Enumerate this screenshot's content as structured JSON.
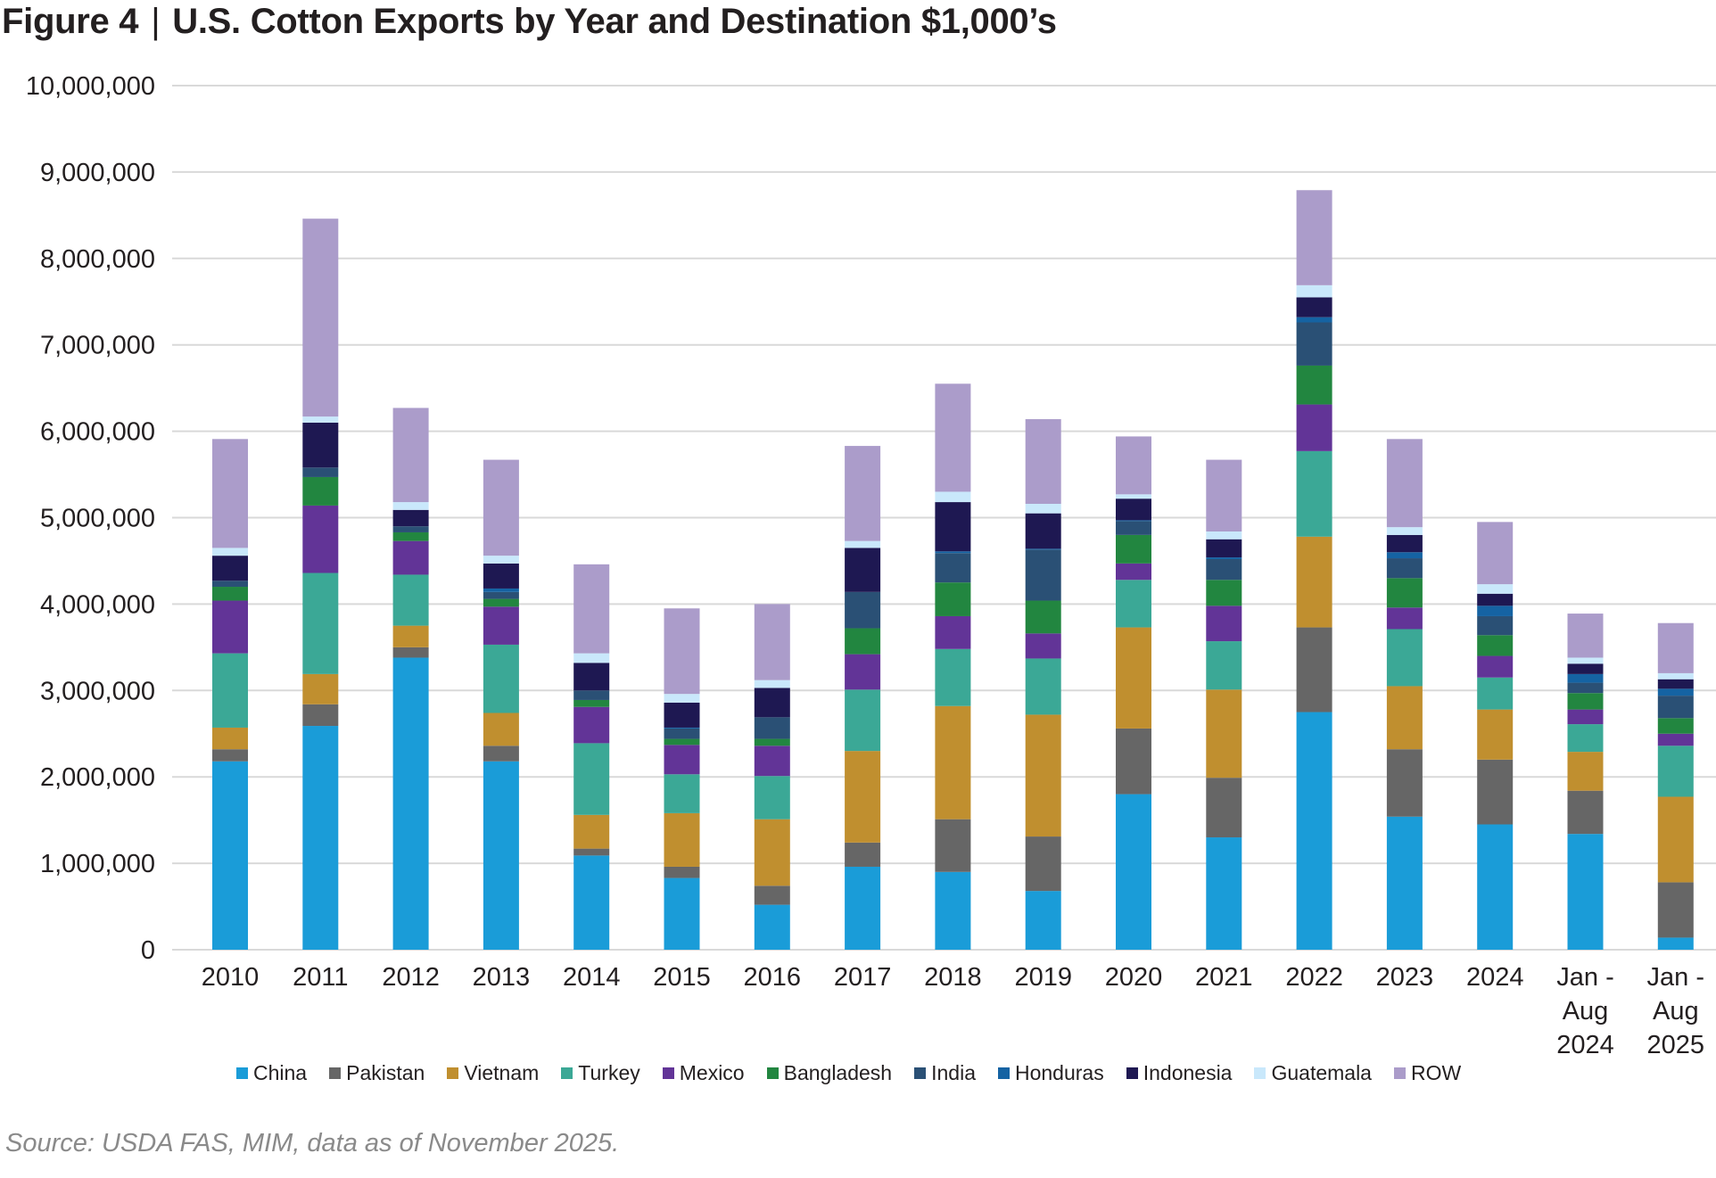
{
  "header": {
    "figure_label": "Figure 4",
    "separator": "|",
    "title": "U.S. Cotton Exports by Year and Destination $1,000’s"
  },
  "source": "Source: USDA FAS, MIM, data as of November 2025.",
  "chart_data": {
    "type": "bar",
    "stacked": true,
    "title": "U.S. Cotton Exports by Year and Destination $1,000’s",
    "xlabel": "",
    "ylabel": "",
    "ylim": [
      0,
      10000000
    ],
    "yticks": [
      0,
      1000000,
      2000000,
      3000000,
      4000000,
      5000000,
      6000000,
      7000000,
      8000000,
      9000000,
      10000000
    ],
    "ytick_labels": [
      "0",
      "1,000,000",
      "2,000,000",
      "3,000,000",
      "4,000,000",
      "5,000,000",
      "6,000,000",
      "7,000,000",
      "8,000,000",
      "9,000,000",
      "10,000,000"
    ],
    "grid": "horizontal",
    "legend_position": "bottom",
    "categories": [
      "2010",
      "2011",
      "2012",
      "2013",
      "2014",
      "2015",
      "2016",
      "2017",
      "2018",
      "2019",
      "2020",
      "2021",
      "2022",
      "2023",
      "2024",
      "Jan - Aug 2024",
      "Jan - Aug 2025"
    ],
    "series": [
      {
        "name": "China",
        "color": "#1a9cd8",
        "values": [
          2180000,
          2590000,
          3380000,
          2180000,
          1090000,
          830000,
          520000,
          960000,
          900000,
          680000,
          1800000,
          1300000,
          2750000,
          1540000,
          1450000,
          1340000,
          140000
        ]
      },
      {
        "name": "Pakistan",
        "color": "#666666",
        "values": [
          140000,
          250000,
          120000,
          180000,
          80000,
          130000,
          220000,
          280000,
          610000,
          630000,
          760000,
          690000,
          980000,
          780000,
          750000,
          500000,
          640000
        ]
      },
      {
        "name": "Vietnam",
        "color": "#c08f2f",
        "values": [
          250000,
          350000,
          250000,
          380000,
          390000,
          620000,
          770000,
          1060000,
          1310000,
          1410000,
          1170000,
          1020000,
          1050000,
          730000,
          580000,
          450000,
          990000
        ]
      },
      {
        "name": "Turkey",
        "color": "#3ba896",
        "values": [
          860000,
          1170000,
          590000,
          790000,
          830000,
          450000,
          500000,
          710000,
          660000,
          650000,
          550000,
          560000,
          990000,
          660000,
          370000,
          320000,
          590000
        ]
      },
      {
        "name": "Mexico",
        "color": "#623497",
        "values": [
          610000,
          780000,
          390000,
          440000,
          420000,
          340000,
          350000,
          410000,
          380000,
          290000,
          190000,
          410000,
          540000,
          250000,
          250000,
          170000,
          140000
        ]
      },
      {
        "name": "Bangladesh",
        "color": "#228640",
        "values": [
          160000,
          330000,
          100000,
          90000,
          80000,
          70000,
          80000,
          300000,
          390000,
          380000,
          330000,
          300000,
          450000,
          340000,
          240000,
          190000,
          180000
        ]
      },
      {
        "name": "India",
        "color": "#2a5075",
        "values": [
          70000,
          110000,
          70000,
          80000,
          110000,
          120000,
          250000,
          420000,
          340000,
          590000,
          160000,
          240000,
          500000,
          230000,
          220000,
          120000,
          260000
        ]
      },
      {
        "name": "Honduras",
        "color": "#1563a3",
        "values": [
          0,
          0,
          0,
          40000,
          0,
          10000,
          0,
          0,
          20000,
          10000,
          10000,
          20000,
          60000,
          70000,
          120000,
          100000,
          80000
        ]
      },
      {
        "name": "Indonesia",
        "color": "#1e1852",
        "values": [
          290000,
          520000,
          190000,
          290000,
          320000,
          290000,
          340000,
          510000,
          570000,
          410000,
          250000,
          210000,
          230000,
          200000,
          140000,
          120000,
          110000
        ]
      },
      {
        "name": "Guatemala",
        "color": "#c9e8fb",
        "values": [
          90000,
          70000,
          90000,
          90000,
          110000,
          100000,
          90000,
          80000,
          120000,
          110000,
          50000,
          90000,
          140000,
          90000,
          110000,
          70000,
          70000
        ]
      },
      {
        "name": "ROW",
        "color": "#ab9cca",
        "values": [
          1260000,
          2290000,
          1090000,
          1110000,
          1030000,
          990000,
          880000,
          1100000,
          1250000,
          980000,
          670000,
          830000,
          1100000,
          1020000,
          720000,
          510000,
          580000
        ]
      }
    ]
  }
}
